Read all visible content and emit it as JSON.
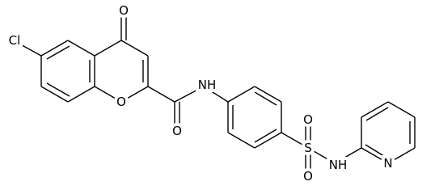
{
  "atoms": [
    "O",
    "Cl",
    "O",
    "O",
    "NH",
    "S",
    "O",
    "O",
    "NH",
    "N"
  ]
}
